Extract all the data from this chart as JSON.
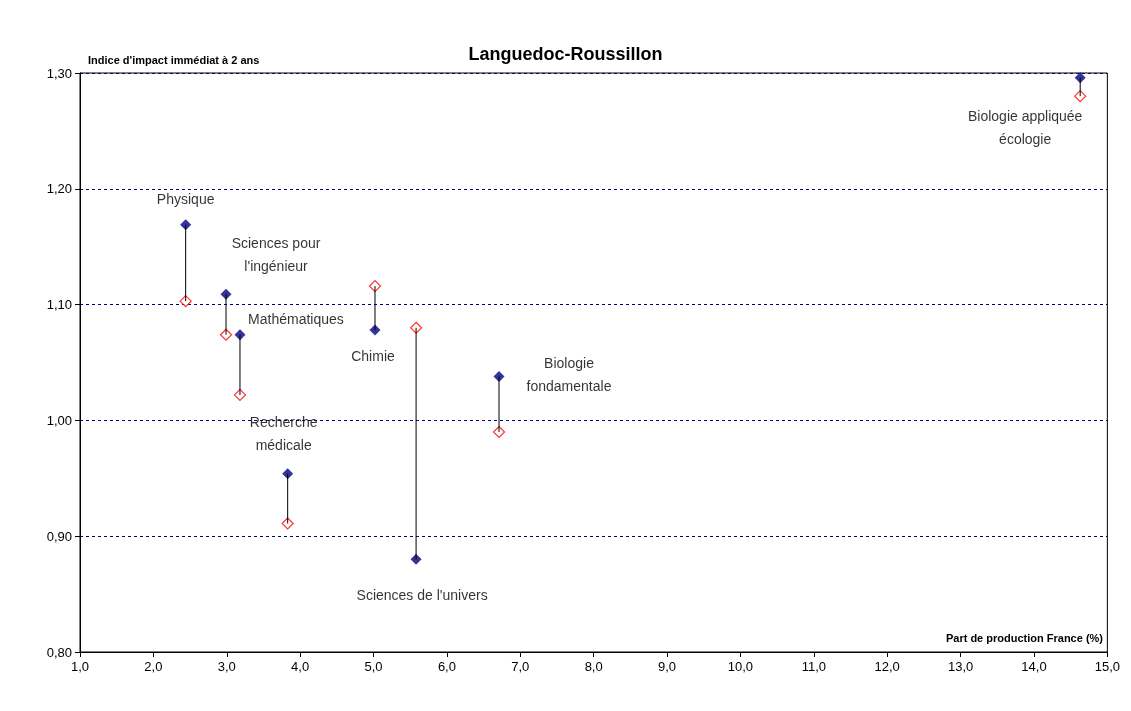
{
  "chart_data": {
    "type": "scatter",
    "title": "Languedoc-Roussillon",
    "xlabel": "Part de production France (%)",
    "ylabel": "Indice d'impact immédiat à 2 ans",
    "x": [
      2.44,
      2.99,
      3.18,
      5.02,
      5.58,
      6.71,
      3.83,
      14.63
    ],
    "series": [
      {
        "color": "#000080",
        "values": [
          1.169,
          1.109,
          1.074,
          1.078,
          0.88,
          1.038,
          0.954,
          1.296
        ],
        "errors": [
          [
            1.103,
            1.169
          ],
          [
            1.074,
            1.109
          ],
          [
            1.022,
            1.074
          ],
          [
            1.078,
            1.116
          ],
          [
            0.88,
            1.08
          ],
          [
            0.99,
            1.038
          ],
          [
            0.911,
            0.954
          ],
          [
            1.28,
            1.296
          ]
        ]
      },
      {
        "color": "#ff0000",
        "values": [
          1.103,
          1.074,
          1.022,
          1.116,
          1.08,
          0.99,
          0.911,
          1.28
        ]
      }
    ],
    "marker": "diamond",
    "xlim": [
      1.0,
      15.0
    ],
    "xticks": [
      {
        "value": 1,
        "label": "1,0"
      },
      {
        "value": 2,
        "label": "2,0"
      },
      {
        "value": 3,
        "label": "3,0"
      },
      {
        "value": 4,
        "label": "4,0"
      },
      {
        "value": 5,
        "label": "5,0"
      },
      {
        "value": 6,
        "label": "6,0"
      },
      {
        "value": 7,
        "label": "7,0"
      },
      {
        "value": 8,
        "label": "8,0"
      },
      {
        "value": 9,
        "label": "9,0"
      },
      {
        "value": 10,
        "label": "10,0"
      },
      {
        "value": 11,
        "label": "11,0"
      },
      {
        "value": 12,
        "label": "12,0"
      },
      {
        "value": 13,
        "label": "13,0"
      },
      {
        "value": 14,
        "label": "14,0"
      },
      {
        "value": 15,
        "label": "15,0"
      }
    ],
    "ylim": [
      0.8,
      1.3
    ],
    "yticks": [
      {
        "value": 0.8,
        "label": "0,80"
      },
      {
        "value": 0.9,
        "label": "0,90"
      },
      {
        "value": 1.0,
        "label": "1,00"
      },
      {
        "value": 1.1,
        "label": "1,10"
      },
      {
        "value": 1.2,
        "label": "1,20"
      },
      {
        "value": 1.3,
        "label": "1,30"
      }
    ],
    "grid": "y",
    "annotations": [
      {
        "text": "Physique",
        "x": 2.44,
        "y": 1.169
      },
      {
        "text": "Sciences pour\nl'ingénieur",
        "x": 2.99,
        "y": 1.109
      },
      {
        "text": "Mathématiques",
        "x": 3.18,
        "y": 1.074
      },
      {
        "text": "Chimie",
        "x": 5.02,
        "y": 1.078
      },
      {
        "text": "Recherche\nmédicale",
        "x": 3.83,
        "y": 0.954
      },
      {
        "text": "Sciences de l'univers",
        "x": 5.58,
        "y": 0.88
      },
      {
        "text": "Biologie\nfondamentale",
        "x": 6.71,
        "y": 1.038
      },
      {
        "text": "Biologie appliquée\nécologie",
        "x": 14.63,
        "y": 1.296
      }
    ]
  }
}
